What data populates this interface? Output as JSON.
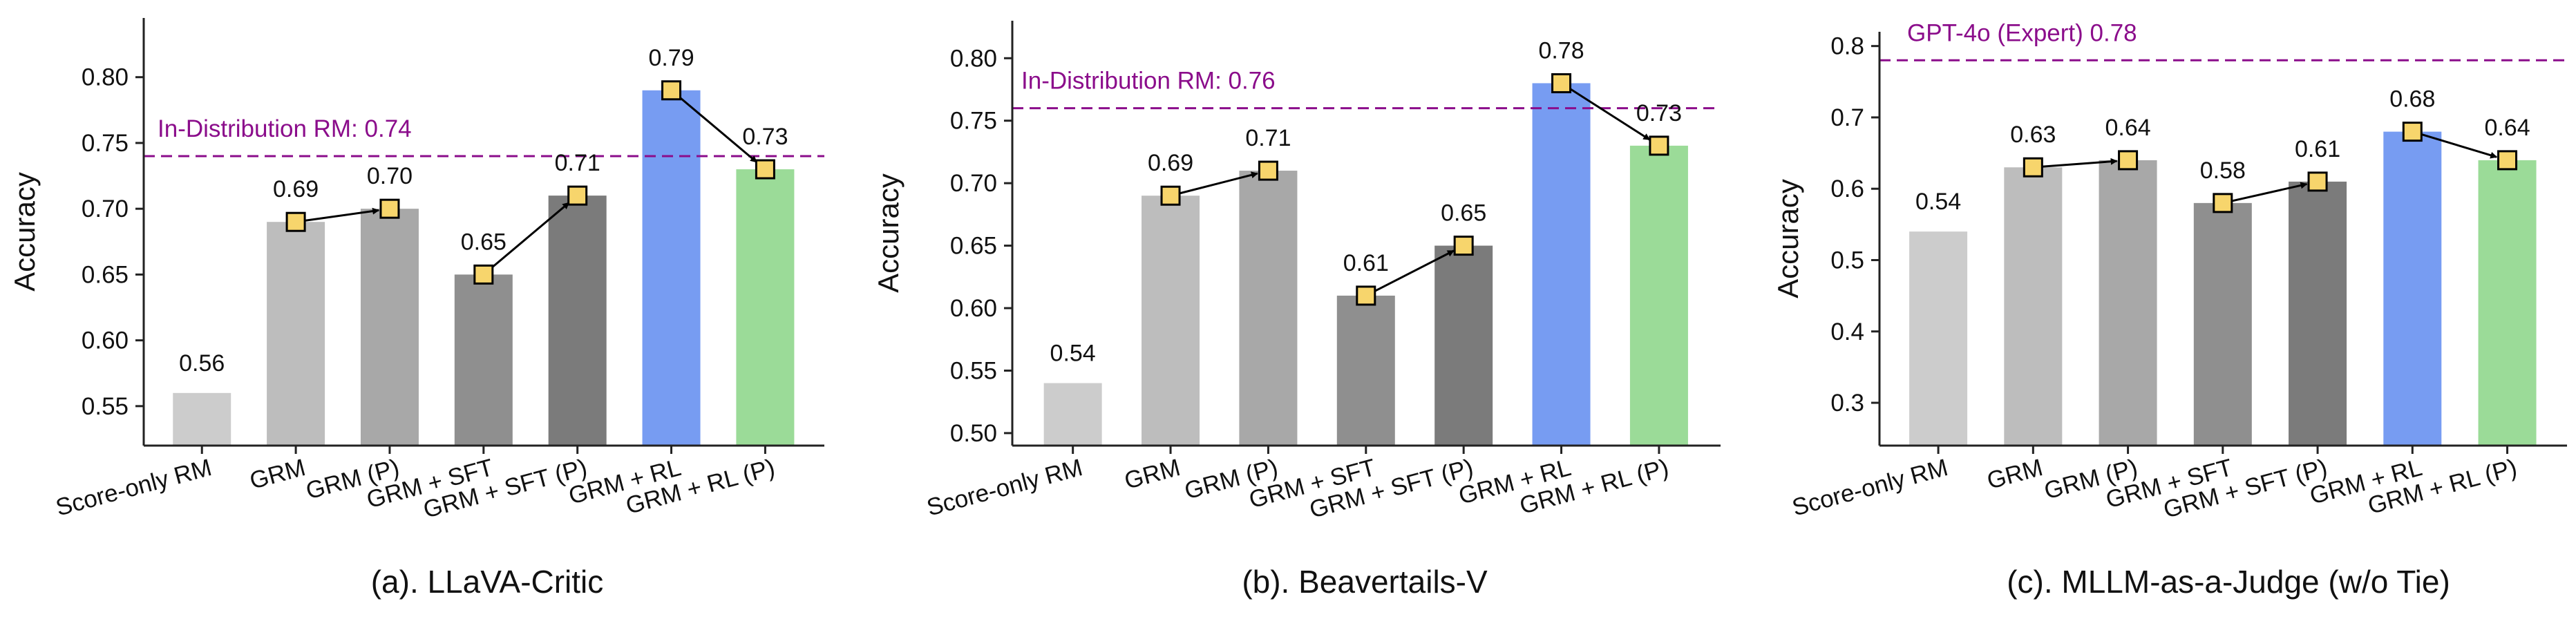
{
  "colors": {
    "bar_colors": [
      "#cccccc",
      "#bdbdbd",
      "#a8a8a8",
      "#8f8f8f",
      "#7b7b7b",
      "#779cf2",
      "#9bdb98"
    ],
    "reference_line": "#8b0d8b",
    "marker_fill": "#f7d56c",
    "marker_stroke": "#000000",
    "axis": "#222222"
  },
  "chart_data": [
    {
      "type": "bar",
      "title": "(a). LLaVA-Critic",
      "ylabel": "Accuracy",
      "xlabel": "",
      "ylim": [
        0.52,
        0.845
      ],
      "yticks": [
        0.55,
        0.6,
        0.65,
        0.7,
        0.75,
        0.8
      ],
      "ytick_labels": [
        "0.55",
        "0.60",
        "0.65",
        "0.70",
        "0.75",
        "0.80"
      ],
      "categories": [
        "Score-only RM",
        "GRM",
        "GRM (P)",
        "GRM + SFT",
        "GRM + SFT (P)",
        "GRM + RL",
        "GRM + RL (P)"
      ],
      "values": [
        0.56,
        0.69,
        0.7,
        0.65,
        0.71,
        0.79,
        0.73
      ],
      "value_labels": [
        "0.56",
        "0.69",
        "0.70",
        "0.65",
        "0.71",
        "0.79",
        "0.73"
      ],
      "markers_on": [
        1,
        2,
        3,
        4,
        5,
        6
      ],
      "arrows": [
        [
          1,
          2
        ],
        [
          3,
          4
        ],
        [
          5,
          6
        ]
      ],
      "reference_line": {
        "value": 0.74,
        "label": "In-Distribution RM: 0.74"
      }
    },
    {
      "type": "bar",
      "title": "(b). Beavertails-V",
      "ylabel": "Accuracy",
      "xlabel": "",
      "ylim": [
        0.49,
        0.83
      ],
      "yticks": [
        0.5,
        0.55,
        0.6,
        0.65,
        0.7,
        0.75,
        0.8
      ],
      "ytick_labels": [
        "0.50",
        "0.55",
        "0.60",
        "0.65",
        "0.70",
        "0.75",
        "0.80"
      ],
      "categories": [
        "Score-only RM",
        "GRM",
        "GRM (P)",
        "GRM + SFT",
        "GRM + SFT (P)",
        "GRM + RL",
        "GRM + RL (P)"
      ],
      "values": [
        0.54,
        0.69,
        0.71,
        0.61,
        0.65,
        0.78,
        0.73
      ],
      "value_labels": [
        "0.54",
        "0.69",
        "0.71",
        "0.61",
        "0.65",
        "0.78",
        "0.73"
      ],
      "markers_on": [
        1,
        2,
        3,
        4,
        5,
        6
      ],
      "arrows": [
        [
          1,
          2
        ],
        [
          3,
          4
        ],
        [
          5,
          6
        ]
      ],
      "reference_line": {
        "value": 0.76,
        "label": "In-Distribution RM: 0.76"
      }
    },
    {
      "type": "bar",
      "title": "(c). MLLM-as-a-Judge (w/o Tie)",
      "ylabel": "Accuracy",
      "xlabel": "",
      "ylim": [
        0.24,
        0.82
      ],
      "yticks": [
        0.3,
        0.4,
        0.5,
        0.6,
        0.7,
        0.8
      ],
      "ytick_labels": [
        "0.3",
        "0.4",
        "0.5",
        "0.6",
        "0.7",
        "0.8"
      ],
      "categories": [
        "Score-only RM",
        "GRM",
        "GRM (P)",
        "GRM + SFT",
        "GRM + SFT (P)",
        "GRM + RL",
        "GRM + RL (P)"
      ],
      "values": [
        0.54,
        0.63,
        0.64,
        0.58,
        0.61,
        0.68,
        0.64
      ],
      "value_labels": [
        "0.54",
        "0.63",
        "0.64",
        "0.58",
        "0.61",
        "0.68",
        "0.64"
      ],
      "markers_on": [
        1,
        2,
        3,
        4,
        5,
        6
      ],
      "arrows": [
        [
          1,
          2
        ],
        [
          3,
          4
        ],
        [
          5,
          6
        ]
      ],
      "reference_line": {
        "value": 0.78,
        "label": "GPT-4o (Expert) 0.78"
      }
    }
  ]
}
